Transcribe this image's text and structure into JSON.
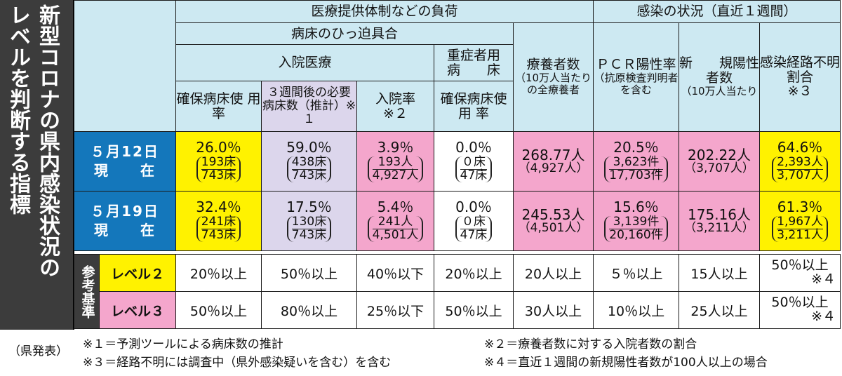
{
  "title": {
    "line1": "新型コロナの県内感染状況の",
    "line2": "レベルを判断する指標"
  },
  "header": {
    "medical_load": "医療提供体制などの負荷",
    "infection": "感染の状況（直近１週間）",
    "bed_pressure": "病床のひっ迫具合",
    "hospital_care": "入院医療",
    "severe_beds": "重症者用　病　　床",
    "recuperating": "療養者数",
    "recuperating_note": "（10万人当たりの全療養者",
    "pcr": "ＰＣＲ陽性率",
    "pcr_note": "（抗原検査判明者を含む",
    "new_cases": "新　　規陽性者数",
    "new_cases_note": "（10万人当たり",
    "unknown_route": "感染経路不明割合",
    "unknown_route_note": "※３",
    "bed_usage": "確保病床使 用 率",
    "beds_3weeks": "３週間後の必要病床数（推計）※１",
    "admission_rate": "入院率",
    "admission_rate_note": "※２",
    "severe_bed_usage": "確保病床使 用 率"
  },
  "rows": [
    {
      "date": "５月12日",
      "now": "現　　在",
      "bed_usage": "26.0％",
      "bed_usage_num": "193床",
      "bed_usage_den": "743床",
      "beds_3w": "59.0％",
      "beds_3w_num": "438床",
      "beds_3w_den": "743床",
      "admission": "3.9％",
      "admission_num": "193人",
      "admission_den": "4,927人",
      "severe": "0.0％",
      "severe_num": "０床",
      "severe_den": "47床",
      "recup": "268.77人",
      "recup_sub": "（4,927人）",
      "pcr": "20.5％",
      "pcr_num": "3,623件",
      "pcr_den": "17,703件",
      "new": "202.22人",
      "new_sub": "（3,707人）",
      "unknown": "64.6％",
      "unknown_num": "2,393人",
      "unknown_den": "3,707人"
    },
    {
      "date": "５月19日",
      "now": "現　　在",
      "bed_usage": "32.4％",
      "bed_usage_num": "241床",
      "bed_usage_den": "743床",
      "beds_3w": "17.5％",
      "beds_3w_num": "130床",
      "beds_3w_den": "743床",
      "admission": "5.4％",
      "admission_num": "241人",
      "admission_den": "4,501人",
      "severe": "0.0％",
      "severe_num": "０床",
      "severe_den": "47床",
      "recup": "245.53人",
      "recup_sub": "（4,501人）",
      "pcr": "15.6％",
      "pcr_num": "3,139件",
      "pcr_den": "20,160件",
      "new": "175.16人",
      "new_sub": "（3,211人）",
      "unknown": "61.3％",
      "unknown_num": "1,967人",
      "unknown_den": "3,211人"
    }
  ],
  "reference": {
    "label": "参考基準",
    "levels": [
      {
        "name": "レベル２",
        "values": [
          "20％以上",
          "50％以上",
          "40％以下",
          "20％以上",
          "20人以上",
          "５％以上",
          "15人以上",
          "50％以上",
          "※４"
        ]
      },
      {
        "name": "レベル３",
        "values": [
          "50％以上",
          "80％以上",
          "25％以下",
          "50％以上",
          "30人以上",
          "10％以上",
          "25人以上",
          "50％以上",
          "※４"
        ]
      }
    ]
  },
  "notes": {
    "source": "（県発表）",
    "n1": "※１＝予測ツールによる病床数の推計",
    "n2": "※２＝療養者数に対する入院者数の割合",
    "n3": "※３＝経路不明には調査中（県外感染疑いを含む）を含む",
    "n4": "※４＝直近１週間の新規陽性者数が100人以上の場合"
  },
  "colors": {
    "header_bg": "#cde9f2",
    "date_bg": "#1477bb",
    "yellow": "#fff200",
    "pink": "#f4a6cc",
    "lavender": "#dcd6ec",
    "title_bg": "#3c3c3c"
  }
}
